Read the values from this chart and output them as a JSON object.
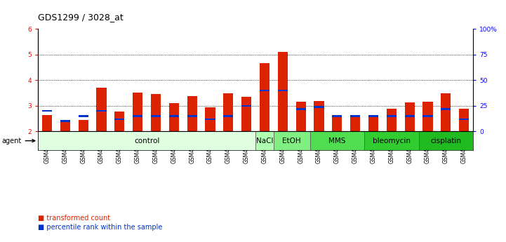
{
  "title": "GDS1299 / 3028_at",
  "samples": [
    "GSM40714",
    "GSM40715",
    "GSM40716",
    "GSM40717",
    "GSM40718",
    "GSM40719",
    "GSM40720",
    "GSM40721",
    "GSM40722",
    "GSM40723",
    "GSM40724",
    "GSM40725",
    "GSM40726",
    "GSM40727",
    "GSM40731",
    "GSM40732",
    "GSM40728",
    "GSM40729",
    "GSM40730",
    "GSM40733",
    "GSM40734",
    "GSM40735",
    "GSM40736",
    "GSM40737"
  ],
  "red_values": [
    2.65,
    2.38,
    2.45,
    3.72,
    2.78,
    3.53,
    3.45,
    3.1,
    3.38,
    2.95,
    3.48,
    3.35,
    4.67,
    5.1,
    3.15,
    3.18,
    2.6,
    2.58,
    2.58,
    2.9,
    3.12,
    3.15,
    3.48,
    2.9
  ],
  "blue_pct": [
    20,
    10,
    15,
    20,
    12,
    15,
    15,
    15,
    15,
    12,
    15,
    25,
    40,
    40,
    22,
    24,
    15,
    15,
    15,
    15,
    15,
    15,
    22,
    12
  ],
  "ylim_left": [
    2,
    6
  ],
  "ylim_right": [
    0,
    100
  ],
  "yticks_left": [
    2,
    3,
    4,
    5,
    6
  ],
  "yticks_right": [
    0,
    25,
    50,
    75,
    100
  ],
  "ytick_labels_right": [
    "0",
    "25",
    "50",
    "75",
    "100%"
  ],
  "agents": [
    {
      "label": "control",
      "start": 0,
      "end": 12,
      "color": "#e0ffe0"
    },
    {
      "label": "NaCl",
      "start": 12,
      "end": 13,
      "color": "#b0ffb0"
    },
    {
      "label": "EtOH",
      "start": 13,
      "end": 15,
      "color": "#80ee80"
    },
    {
      "label": "MMS",
      "start": 15,
      "end": 18,
      "color": "#50dd50"
    },
    {
      "label": "bleomycin",
      "start": 18,
      "end": 21,
      "color": "#30cc30"
    },
    {
      "label": "cisplatin",
      "start": 21,
      "end": 24,
      "color": "#20bb20"
    }
  ],
  "bar_color_red": "#dd2200",
  "bar_color_blue": "#0033cc",
  "bar_width": 0.55,
  "background_color": "#ffffff",
  "title_fontsize": 9,
  "tick_fontsize": 6.5,
  "agent_fontsize": 7.5
}
